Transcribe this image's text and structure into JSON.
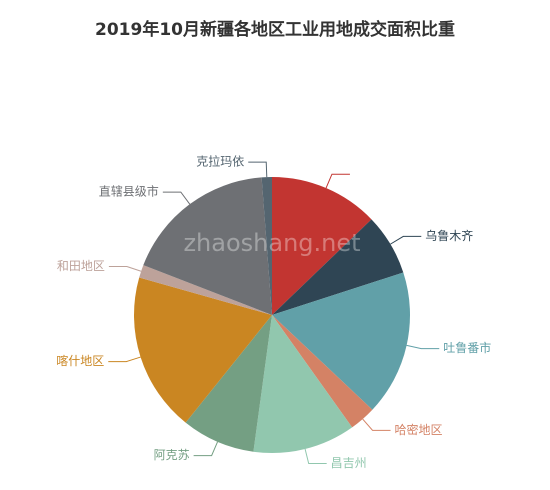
{
  "chart_data": {
    "type": "pie",
    "title": "2019年10月新疆各地区工业用地成交面积比重",
    "watermark": "zhaoshang.net",
    "categories": [
      null,
      "乌鲁木齐",
      "吐鲁番市",
      "哈密地区",
      "昌吉州",
      "阿克苏",
      "喀什地区",
      "和田地区",
      "直辖县级市",
      "克拉玛依"
    ],
    "values": [
      12.8,
      7.2,
      17,
      3.1,
      12,
      8.6,
      18.6,
      1.5,
      17.9,
      1.2
    ],
    "colors": [
      "#c23531",
      "#2f4554",
      "#61a0a8",
      "#d48265",
      "#91c7ae",
      "#749f83",
      "#ca8622",
      "#bda29a",
      "#6e7074",
      "#546570"
    ]
  }
}
